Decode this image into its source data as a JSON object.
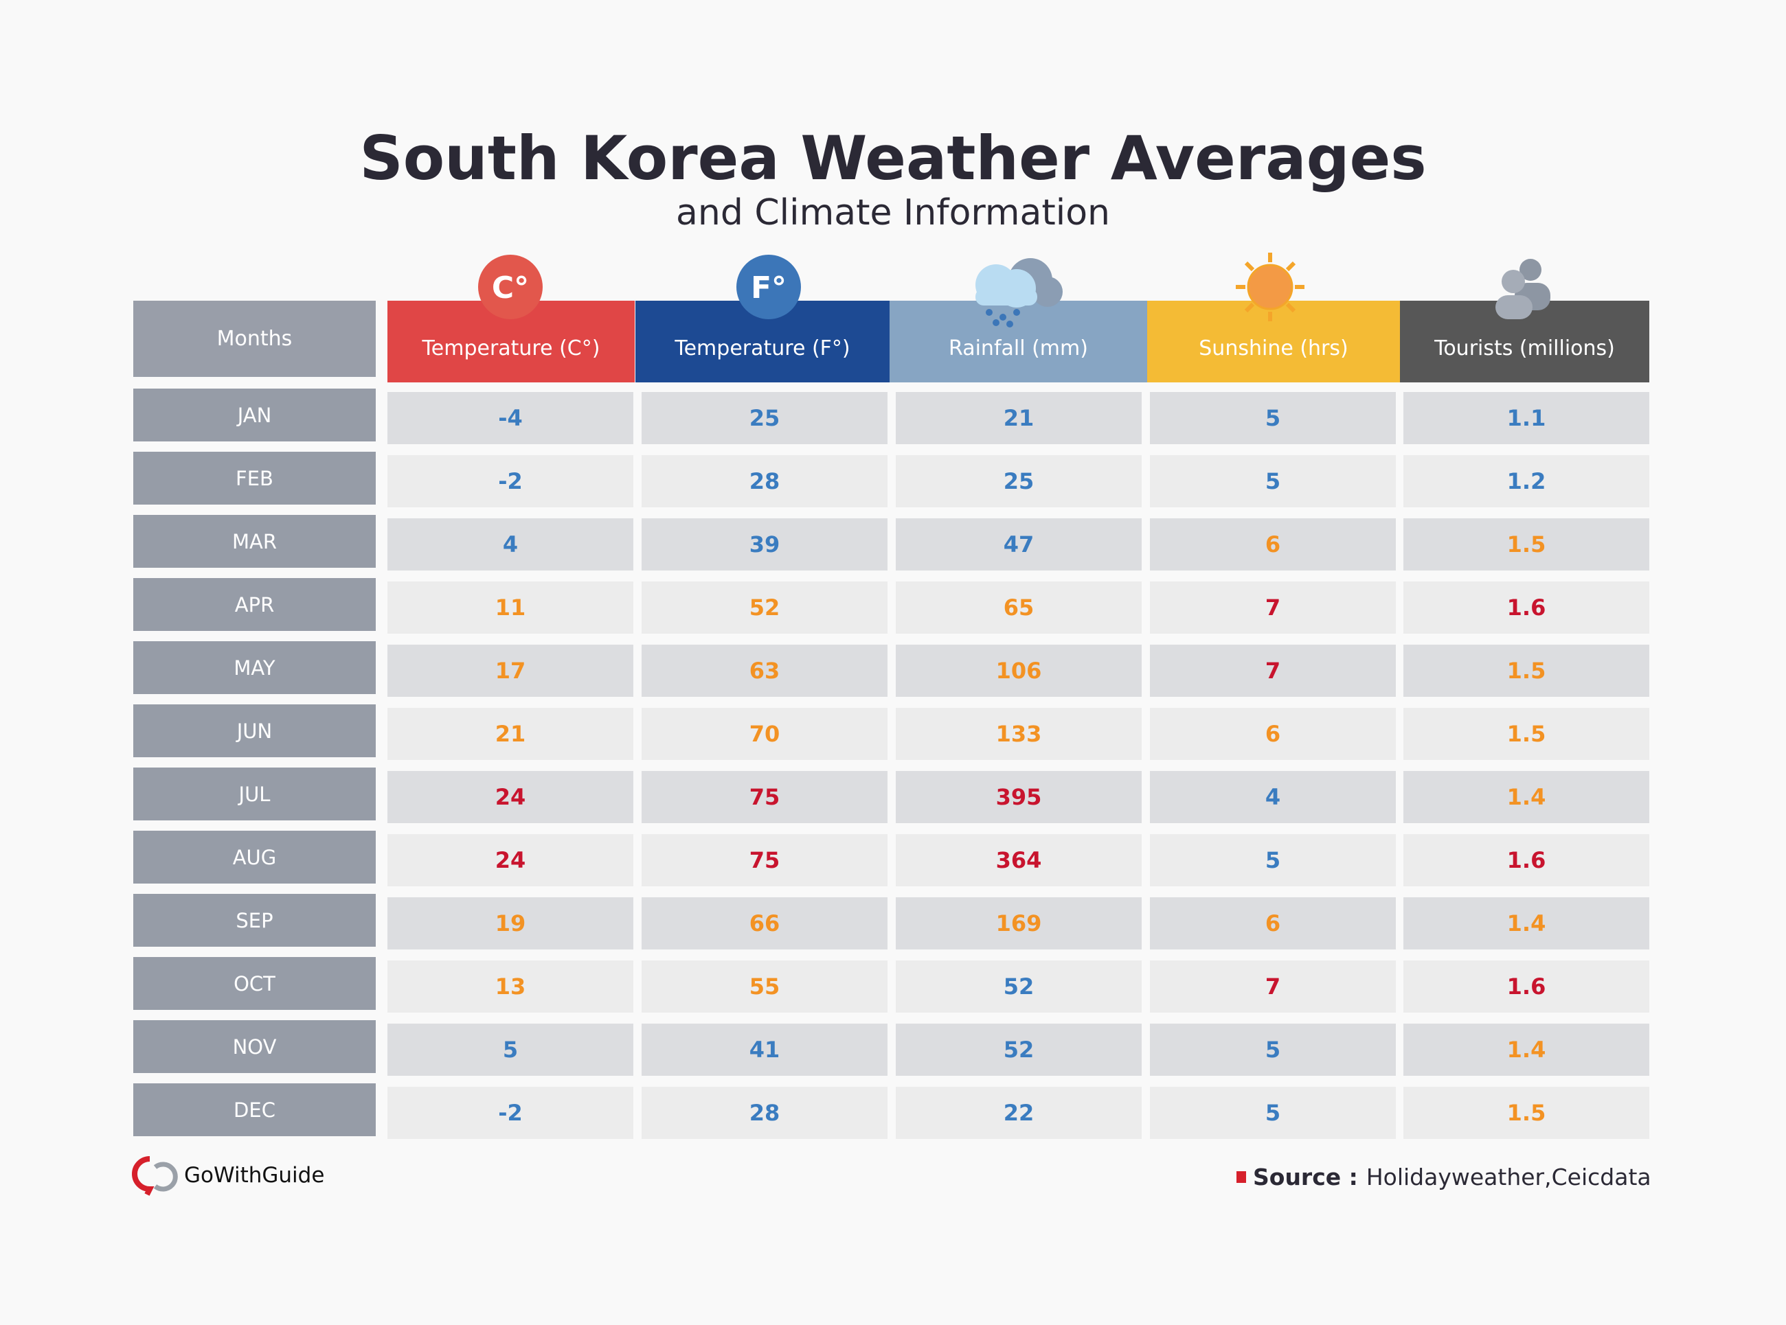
{
  "title": "South Korea Weather Averages",
  "subtitle": "and Climate Information",
  "table": {
    "months_header": "Months",
    "columns": [
      {
        "label": "Temperature (C°)",
        "icon": "C°",
        "color": "#e04646"
      },
      {
        "label": "Temperature (F°)",
        "icon": "F°",
        "color": "#1d4a93"
      },
      {
        "label": "Rainfall (mm)",
        "color": "#87a5c3"
      },
      {
        "label": "Sunshine (hrs)",
        "color": "#f4bb35"
      },
      {
        "label": "Tourists (millions)",
        "color": "#575757"
      }
    ],
    "palette": {
      "blue": "#3a7cc0",
      "orange": "#f39223",
      "red": "#c8142e"
    },
    "rows": [
      {
        "month": "JAN",
        "values": [
          -4,
          25,
          21,
          5,
          1.1
        ],
        "tones": [
          "blue",
          "blue",
          "blue",
          "blue",
          "blue"
        ]
      },
      {
        "month": "FEB",
        "values": [
          -2,
          28,
          25,
          5,
          1.2
        ],
        "tones": [
          "blue",
          "blue",
          "blue",
          "blue",
          "blue"
        ]
      },
      {
        "month": "MAR",
        "values": [
          4,
          39,
          47,
          6,
          1.5
        ],
        "tones": [
          "blue",
          "blue",
          "blue",
          "orange",
          "orange"
        ]
      },
      {
        "month": "APR",
        "values": [
          11,
          52,
          65,
          7,
          1.6
        ],
        "tones": [
          "orange",
          "orange",
          "orange",
          "red",
          "red"
        ]
      },
      {
        "month": "MAY",
        "values": [
          17,
          63,
          106,
          7,
          1.5
        ],
        "tones": [
          "orange",
          "orange",
          "orange",
          "red",
          "orange"
        ]
      },
      {
        "month": "JUN",
        "values": [
          21,
          70,
          133,
          6,
          1.5
        ],
        "tones": [
          "orange",
          "orange",
          "orange",
          "orange",
          "orange"
        ]
      },
      {
        "month": "JUL",
        "values": [
          24,
          75,
          395,
          4,
          1.4
        ],
        "tones": [
          "red",
          "red",
          "red",
          "blue",
          "orange"
        ]
      },
      {
        "month": "AUG",
        "values": [
          24,
          75,
          364,
          5,
          1.6
        ],
        "tones": [
          "red",
          "red",
          "red",
          "blue",
          "red"
        ]
      },
      {
        "month": "SEP",
        "values": [
          19,
          66,
          169,
          6,
          1.4
        ],
        "tones": [
          "orange",
          "orange",
          "orange",
          "orange",
          "orange"
        ]
      },
      {
        "month": "OCT",
        "values": [
          13,
          55,
          52,
          7,
          1.6
        ],
        "tones": [
          "orange",
          "orange",
          "blue",
          "red",
          "red"
        ]
      },
      {
        "month": "NOV",
        "values": [
          5,
          41,
          52,
          5,
          1.4
        ],
        "tones": [
          "blue",
          "blue",
          "blue",
          "blue",
          "orange"
        ]
      },
      {
        "month": "DEC",
        "values": [
          -2,
          28,
          22,
          5,
          1.5
        ],
        "tones": [
          "blue",
          "blue",
          "blue",
          "blue",
          "orange"
        ]
      }
    ]
  },
  "footer": {
    "brand": "GoWithGuide",
    "source_label": "Source :",
    "source": "Holidayweather,Ceicdata"
  }
}
